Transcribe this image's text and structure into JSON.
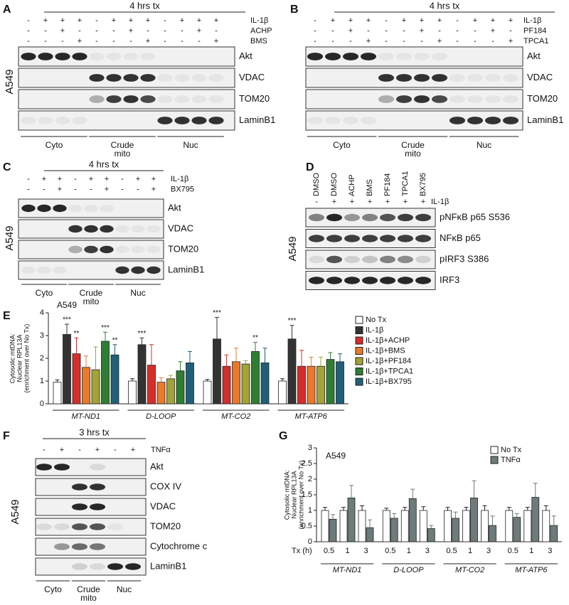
{
  "panel_a": {
    "letter": "A",
    "header": "4 hrs tx",
    "cell_line": "A549",
    "treatments": [
      {
        "name": "IL-1β",
        "signs": [
          "-",
          "+",
          "+",
          "+",
          "-",
          "+",
          "+",
          "+",
          "-",
          "+",
          "+",
          "+"
        ]
      },
      {
        "name": "ACHP",
        "signs": [
          "-",
          "-",
          "+",
          "-",
          "-",
          "-",
          "+",
          "-",
          "-",
          "-",
          "+",
          "-"
        ]
      },
      {
        "name": "BMS",
        "signs": [
          "-",
          "-",
          "-",
          "+",
          "-",
          "-",
          "-",
          "+",
          "-",
          "-",
          "-",
          "+"
        ]
      }
    ],
    "blots": [
      "Akt",
      "VDAC",
      "TOM20",
      "LaminB1"
    ],
    "fractions": [
      [
        "Cyto"
      ],
      [
        "Crude",
        "mito"
      ],
      [
        "Nuc"
      ]
    ]
  },
  "panel_b": {
    "letter": "B",
    "header": "4 hrs tx",
    "treatments": [
      {
        "name": "IL-1β",
        "signs": [
          "-",
          "+",
          "+",
          "+",
          "-",
          "+",
          "+",
          "+",
          "-",
          "+",
          "+",
          "+"
        ]
      },
      {
        "name": "PF184",
        "signs": [
          "-",
          "-",
          "+",
          "-",
          "-",
          "-",
          "+",
          "-",
          "-",
          "-",
          "+",
          "-"
        ]
      },
      {
        "name": "TPCA1",
        "signs": [
          "-",
          "-",
          "-",
          "+",
          "-",
          "-",
          "-",
          "+",
          "-",
          "-",
          "-",
          "+"
        ]
      }
    ],
    "blots": [
      "Akt",
      "VDAC",
      "TOM20",
      "LaminB1"
    ],
    "fractions": [
      [
        "Cyto"
      ],
      [
        "Crude",
        "mito"
      ],
      [
        "Nuc"
      ]
    ]
  },
  "panel_c": {
    "letter": "C",
    "header": "4 hrs tx",
    "cell_line": "A549",
    "treatments": [
      {
        "name": "IL-1β",
        "signs": [
          "-",
          "+",
          "+",
          "-",
          "+",
          "+",
          "-",
          "+",
          "+"
        ]
      },
      {
        "name": "BX795",
        "signs": [
          "-",
          "-",
          "+",
          "-",
          "-",
          "+",
          "-",
          "-",
          "+"
        ]
      }
    ],
    "blots": [
      "Akt",
      "VDAC",
      "TOM20",
      "LaminB1"
    ],
    "fractions": [
      [
        "Cyto"
      ],
      [
        "Crude",
        "mito"
      ],
      [
        "Nuc"
      ]
    ]
  },
  "panel_d": {
    "letter": "D",
    "cell_line": "A549",
    "lanes": [
      "DMSO",
      "DMSO",
      "ACHP",
      "BMS",
      "PF184",
      "TPCA1",
      "BX795"
    ],
    "treatments": [
      {
        "name": "IL-1β",
        "signs": [
          "-",
          "+",
          "+",
          "+",
          "+",
          "+",
          "+"
        ]
      }
    ],
    "blots": [
      "pNFκB p65 S536",
      "NFκB p65",
      "pIRF3 S386",
      "IRF3"
    ]
  },
  "panel_e": {
    "letter": "E",
    "title": "A549",
    "ylabel": [
      "Cytosolic mtDNA:",
      "Nuclear RPL13A",
      "(enrichment over No Tx)"
    ],
    "ylim": [
      0,
      4
    ],
    "yticks": [
      0,
      1,
      2,
      3,
      4
    ],
    "groups": [
      "MT-ND1",
      "D-LOOP",
      "MT-CO2",
      "MT-ATP6"
    ],
    "series": [
      {
        "name": "No Tx",
        "color": "#ffffff",
        "values": [
          0.95,
          1.0,
          1.0,
          1.0
        ],
        "errors": [
          0.1,
          0.1,
          0.07,
          0.1
        ],
        "significance": [
          null,
          null,
          null,
          null
        ]
      },
      {
        "name": "IL-1β",
        "color": "#333333",
        "values": [
          3.05,
          2.6,
          2.85,
          2.85
        ],
        "errors": [
          0.45,
          0.3,
          0.95,
          0.6
        ],
        "significance": [
          "***",
          "***",
          "***",
          "***"
        ]
      },
      {
        "name": "IL-1β+ACHP",
        "color": "#d42e2a",
        "values": [
          2.2,
          1.7,
          1.65,
          1.65
        ],
        "errors": [
          0.7,
          0.9,
          0.5,
          0.7
        ],
        "significance": [
          "**",
          null,
          null,
          null
        ]
      },
      {
        "name": "IL-1β+BMS",
        "color": "#e87a2a",
        "values": [
          1.6,
          0.95,
          1.85,
          1.65
        ],
        "errors": [
          0.5,
          0.2,
          0.6,
          0.4
        ],
        "significance": [
          null,
          null,
          null,
          null
        ]
      },
      {
        "name": "IL-1β+PF184",
        "color": "#a3a336",
        "values": [
          1.5,
          1.1,
          1.75,
          1.65
        ],
        "errors": [
          1.0,
          0.15,
          0.15,
          0.4
        ],
        "significance": [
          null,
          null,
          null,
          null
        ]
      },
      {
        "name": "IL-1β+TPCA1",
        "color": "#2e7d32",
        "values": [
          2.75,
          1.45,
          2.3,
          1.95
        ],
        "errors": [
          0.4,
          0.4,
          0.4,
          0.3
        ],
        "significance": [
          "***",
          null,
          "**",
          null
        ]
      },
      {
        "name": "IL-1β+BX795",
        "color": "#1f5f7a",
        "values": [
          2.15,
          1.8,
          1.8,
          1.85
        ],
        "errors": [
          0.45,
          0.5,
          0.65,
          0.35
        ],
        "significance": [
          "**",
          null,
          null,
          null
        ]
      }
    ]
  },
  "panel_f": {
    "letter": "F",
    "header": "3 hrs tx",
    "cell_line": "A549",
    "treatments": [
      {
        "name": "TNFα",
        "signs": [
          "-",
          "+",
          "-",
          "+",
          "-",
          "+"
        ]
      }
    ],
    "blots": [
      "Akt",
      "COX IV",
      "VDAC",
      "TOM20",
      "Cytochrome c",
      "LaminB1"
    ],
    "fractions": [
      [
        "Cyto"
      ],
      [
        "Crude",
        "mito"
      ],
      [
        "Nuc"
      ]
    ]
  },
  "panel_g": {
    "letter": "G",
    "title": "A549",
    "ylabel": [
      "Cytosolic mtDNA:",
      "Nuclear RPL13A",
      "(enrichment over No Tx)"
    ],
    "ylim": [
      0,
      3
    ],
    "yticks": [
      0,
      0.5,
      1,
      1.5,
      2,
      2.5,
      3
    ],
    "xlabel": "Tx (h)",
    "times": [
      "0.5",
      "1",
      "3"
    ],
    "groups": [
      "MT-ND1",
      "D-LOOP",
      "MT-CO2",
      "MT-ATP6"
    ],
    "series": [
      {
        "name": "No Tx",
        "color": "#ffffff",
        "values": [
          1.0,
          1.0,
          1.0,
          1.0,
          1.0,
          1.0,
          1.0,
          1.0,
          1.0,
          1.0,
          1.0,
          1.0
        ],
        "errors": [
          0.1,
          0.1,
          0.15,
          0.07,
          0.1,
          0.12,
          0.1,
          0.1,
          0.15,
          0.1,
          0.1,
          0.15
        ]
      },
      {
        "name": "TNFα",
        "color": "#6d7b7b",
        "values": [
          0.72,
          1.4,
          0.45,
          0.75,
          1.38,
          0.42,
          0.75,
          1.4,
          0.52,
          0.78,
          1.42,
          0.52
        ],
        "errors": [
          0.15,
          0.4,
          0.25,
          0.15,
          0.3,
          0.1,
          0.2,
          0.55,
          0.3,
          0.12,
          0.45,
          0.3
        ]
      }
    ]
  }
}
